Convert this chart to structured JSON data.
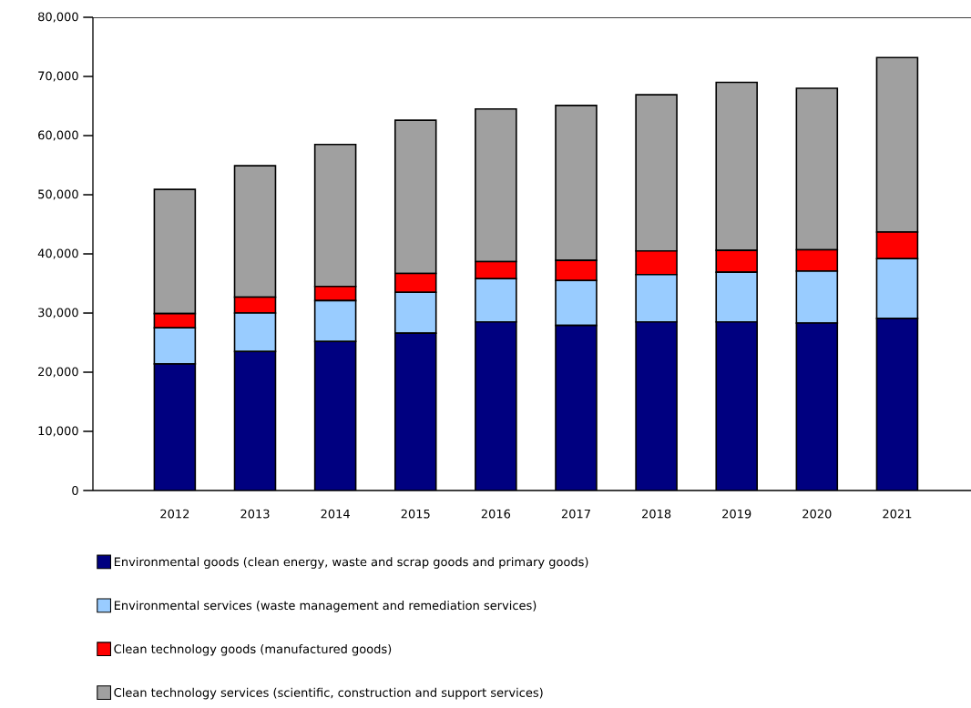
{
  "chart_data": {
    "type": "bar",
    "stacked": true,
    "categories": [
      "2012",
      "2013",
      "2014",
      "2015",
      "2016",
      "2017",
      "2018",
      "2019",
      "2020",
      "2021"
    ],
    "series": [
      {
        "name": "Environmental goods (clean energy, waste and scrap goods and primary goods)",
        "color": "#000080",
        "values": [
          21400,
          23500,
          25200,
          26600,
          28500,
          27900,
          28500,
          28500,
          28300,
          29100
        ]
      },
      {
        "name": "Environmental services (waste management and remediation services)",
        "color": "#99ccff",
        "values": [
          6100,
          6500,
          6900,
          6900,
          7300,
          7600,
          8000,
          8400,
          8800,
          10100
        ]
      },
      {
        "name": "Clean technology goods (manufactured goods)",
        "color": "#ff0000",
        "values": [
          2400,
          2700,
          2400,
          3200,
          2900,
          3400,
          4000,
          3700,
          3600,
          4500
        ]
      },
      {
        "name": "Clean technology services (scientific, construction and support services)",
        "color": "#a0a0a0",
        "values": [
          21000,
          22200,
          24000,
          25900,
          25800,
          26200,
          26400,
          28400,
          27300,
          29500
        ]
      }
    ],
    "ylim": [
      0,
      80000
    ],
    "yticks": [
      0,
      {
        "value": 10000,
        "label": "10,000"
      },
      {
        "value": 20000,
        "label": "20,000"
      },
      {
        "value": 30000,
        "label": "30,000"
      },
      {
        "value": 40000,
        "label": "40,000"
      },
      {
        "value": 50000,
        "label": "50,000"
      },
      {
        "value": 60000,
        "label": "60,000"
      },
      {
        "value": 70000,
        "label": "70,000"
      },
      {
        "value": 80000,
        "label": "80,000"
      }
    ],
    "grid": false,
    "legend": "bottom"
  }
}
